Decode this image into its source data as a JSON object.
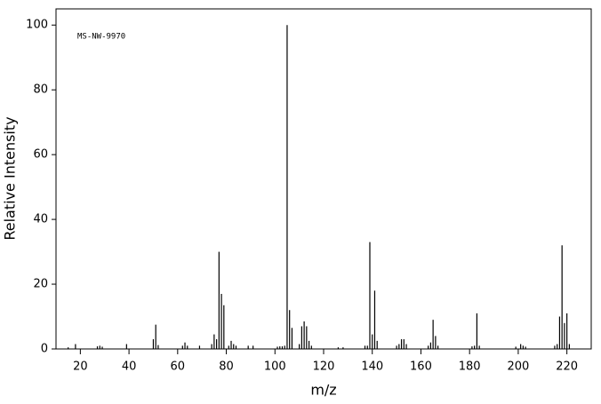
{
  "chart_data": {
    "type": "bar",
    "annotation": "MS-NW-9970",
    "x_label": "m/z",
    "y_label": "Relative Intensity",
    "x": [
      15,
      18,
      27,
      28,
      29,
      39,
      50,
      51,
      52,
      62,
      63,
      64,
      69,
      74,
      75,
      76,
      77,
      78,
      79,
      81,
      82,
      83,
      84,
      89,
      91,
      101,
      102,
      103,
      104,
      105,
      106,
      107,
      110,
      111,
      112,
      113,
      114,
      115,
      126,
      128,
      137,
      138,
      139,
      140,
      141,
      142,
      150,
      151,
      152,
      153,
      154,
      163,
      164,
      165,
      166,
      167,
      181,
      182,
      183,
      184,
      199,
      201,
      202,
      203,
      215,
      216,
      217,
      218,
      219,
      220,
      221
    ],
    "values": [
      0.5,
      1.5,
      0.8,
      1,
      0.7,
      1.5,
      3,
      7.5,
      1.2,
      1,
      2,
      1,
      1,
      1.5,
      4.5,
      3,
      30,
      17,
      13.5,
      1,
      2.5,
      1.5,
      1,
      1,
      1,
      0.7,
      0.8,
      0.8,
      1,
      100,
      12,
      6.5,
      1.5,
      7,
      8.5,
      7,
      2.5,
      1,
      0.5,
      0.5,
      1,
      1,
      33,
      4.5,
      18,
      2.5,
      1,
      1.5,
      3,
      3,
      1.5,
      1,
      2,
      9,
      4,
      1,
      0.8,
      1,
      11,
      1,
      0.7,
      1.5,
      1,
      0.7,
      1,
      1.5,
      10,
      32,
      8,
      11,
      1.5
    ],
    "color": "#000000",
    "xlim": [
      10,
      230
    ],
    "xticks": [
      20,
      40,
      60,
      80,
      100,
      120,
      140,
      160,
      180,
      200,
      220
    ],
    "ylim": [
      0,
      105
    ],
    "yticks": [
      0,
      20,
      40,
      60,
      80,
      100
    ]
  }
}
